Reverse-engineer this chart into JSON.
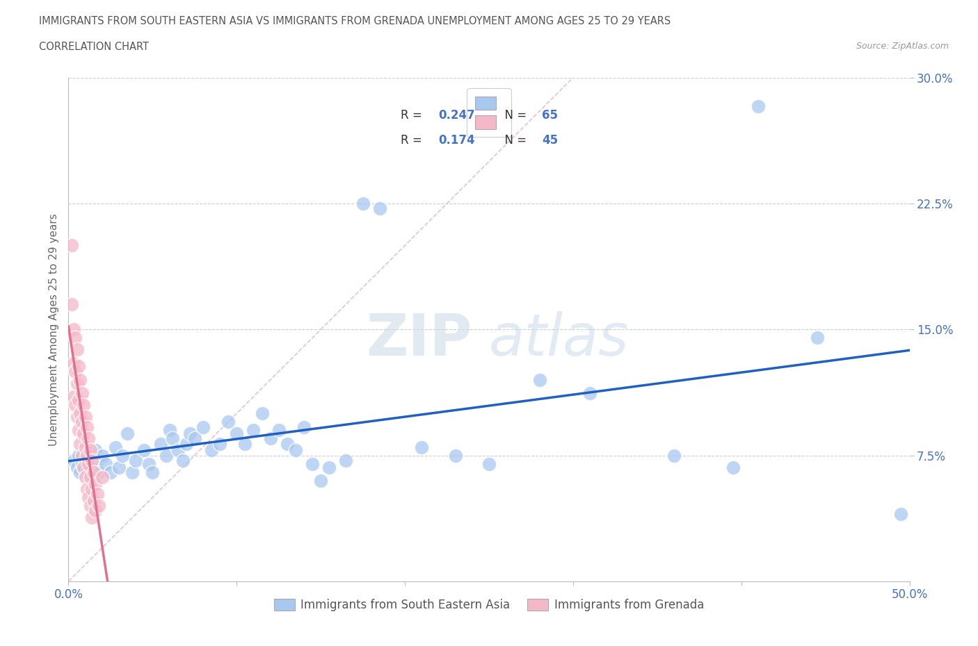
{
  "title_line1": "IMMIGRANTS FROM SOUTH EASTERN ASIA VS IMMIGRANTS FROM GRENADA UNEMPLOYMENT AMONG AGES 25 TO 29 YEARS",
  "title_line2": "CORRELATION CHART",
  "source_text": "Source: ZipAtlas.com",
  "ylabel": "Unemployment Among Ages 25 to 29 years",
  "xlim": [
    0,
    0.5
  ],
  "ylim": [
    0,
    0.3
  ],
  "r_blue": 0.247,
  "n_blue": 65,
  "r_pink": 0.174,
  "n_pink": 45,
  "legend_label_blue": "Immigrants from South Eastern Asia",
  "legend_label_pink": "Immigrants from Grenada",
  "watermark_zip": "ZIP",
  "watermark_atlas": "atlas",
  "blue_color": "#a8c8f0",
  "pink_color": "#f5b8c8",
  "blue_line_color": "#2060c0",
  "pink_line_color": "#e07090",
  "diag_line_color": "#e8b0bc",
  "grid_color": "#cccccc",
  "bg_color": "#ffffff",
  "blue_scatter": [
    [
      0.003,
      0.072
    ],
    [
      0.005,
      0.068
    ],
    [
      0.006,
      0.075
    ],
    [
      0.007,
      0.065
    ],
    [
      0.008,
      0.07
    ],
    [
      0.009,
      0.068
    ],
    [
      0.01,
      0.072
    ],
    [
      0.011,
      0.065
    ],
    [
      0.012,
      0.075
    ],
    [
      0.013,
      0.07
    ],
    [
      0.014,
      0.068
    ],
    [
      0.015,
      0.062
    ],
    [
      0.016,
      0.078
    ],
    [
      0.017,
      0.072
    ],
    [
      0.018,
      0.065
    ],
    [
      0.02,
      0.075
    ],
    [
      0.022,
      0.07
    ],
    [
      0.025,
      0.065
    ],
    [
      0.028,
      0.08
    ],
    [
      0.03,
      0.068
    ],
    [
      0.032,
      0.075
    ],
    [
      0.035,
      0.088
    ],
    [
      0.038,
      0.065
    ],
    [
      0.04,
      0.072
    ],
    [
      0.045,
      0.078
    ],
    [
      0.048,
      0.07
    ],
    [
      0.05,
      0.065
    ],
    [
      0.055,
      0.082
    ],
    [
      0.058,
      0.075
    ],
    [
      0.06,
      0.09
    ],
    [
      0.062,
      0.085
    ],
    [
      0.065,
      0.078
    ],
    [
      0.068,
      0.072
    ],
    [
      0.07,
      0.082
    ],
    [
      0.072,
      0.088
    ],
    [
      0.075,
      0.085
    ],
    [
      0.08,
      0.092
    ],
    [
      0.085,
      0.078
    ],
    [
      0.09,
      0.082
    ],
    [
      0.095,
      0.095
    ],
    [
      0.1,
      0.088
    ],
    [
      0.105,
      0.082
    ],
    [
      0.11,
      0.09
    ],
    [
      0.115,
      0.1
    ],
    [
      0.12,
      0.085
    ],
    [
      0.125,
      0.09
    ],
    [
      0.13,
      0.082
    ],
    [
      0.135,
      0.078
    ],
    [
      0.14,
      0.092
    ],
    [
      0.145,
      0.07
    ],
    [
      0.15,
      0.06
    ],
    [
      0.155,
      0.068
    ],
    [
      0.165,
      0.072
    ],
    [
      0.175,
      0.225
    ],
    [
      0.185,
      0.222
    ],
    [
      0.21,
      0.08
    ],
    [
      0.23,
      0.075
    ],
    [
      0.25,
      0.07
    ],
    [
      0.28,
      0.12
    ],
    [
      0.31,
      0.112
    ],
    [
      0.36,
      0.075
    ],
    [
      0.395,
      0.068
    ],
    [
      0.41,
      0.283
    ],
    [
      0.445,
      0.145
    ],
    [
      0.495,
      0.04
    ]
  ],
  "pink_scatter": [
    [
      0.002,
      0.2
    ],
    [
      0.002,
      0.165
    ],
    [
      0.003,
      0.15
    ],
    [
      0.003,
      0.13
    ],
    [
      0.003,
      0.11
    ],
    [
      0.004,
      0.145
    ],
    [
      0.004,
      0.125
    ],
    [
      0.004,
      0.105
    ],
    [
      0.005,
      0.138
    ],
    [
      0.005,
      0.118
    ],
    [
      0.005,
      0.098
    ],
    [
      0.006,
      0.128
    ],
    [
      0.006,
      0.108
    ],
    [
      0.006,
      0.09
    ],
    [
      0.007,
      0.12
    ],
    [
      0.007,
      0.1
    ],
    [
      0.007,
      0.082
    ],
    [
      0.008,
      0.112
    ],
    [
      0.008,
      0.095
    ],
    [
      0.008,
      0.075
    ],
    [
      0.009,
      0.105
    ],
    [
      0.009,
      0.088
    ],
    [
      0.009,
      0.068
    ],
    [
      0.01,
      0.098
    ],
    [
      0.01,
      0.08
    ],
    [
      0.01,
      0.062
    ],
    [
      0.011,
      0.092
    ],
    [
      0.011,
      0.075
    ],
    [
      0.011,
      0.055
    ],
    [
      0.012,
      0.085
    ],
    [
      0.012,
      0.07
    ],
    [
      0.012,
      0.05
    ],
    [
      0.013,
      0.078
    ],
    [
      0.013,
      0.062
    ],
    [
      0.013,
      0.045
    ],
    [
      0.014,
      0.072
    ],
    [
      0.014,
      0.055
    ],
    [
      0.014,
      0.038
    ],
    [
      0.015,
      0.065
    ],
    [
      0.015,
      0.048
    ],
    [
      0.016,
      0.058
    ],
    [
      0.016,
      0.042
    ],
    [
      0.017,
      0.052
    ],
    [
      0.018,
      0.045
    ],
    [
      0.02,
      0.062
    ]
  ]
}
